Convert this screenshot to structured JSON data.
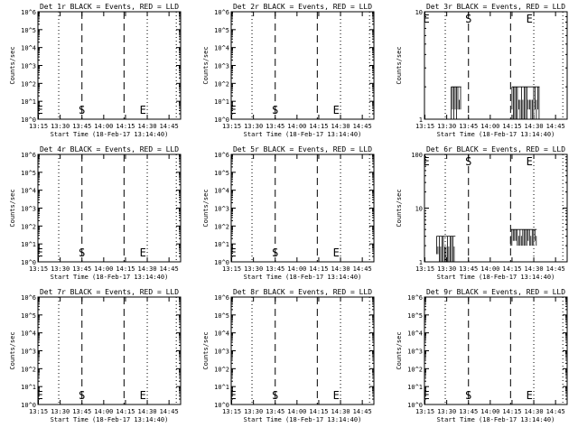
{
  "colors": {
    "background": "#ffffff",
    "axes": "#000000",
    "events": "#000000",
    "lld": "#ff0000"
  },
  "chart_data": [
    {
      "type": "line",
      "title": "Det 1r BLACK = Events, RED = LLD",
      "xlabel": "Start Time (18-Feb-17 13:14:40)",
      "ylabel": "Counts/sec",
      "xticks": [
        "13:15",
        "13:30",
        "13:45",
        "14:00",
        "14:15",
        "14:30",
        "14:45"
      ],
      "xlim": [
        "13:14:40",
        "14:53:00"
      ],
      "yscale": "log",
      "yticks": [
        "10^0",
        "10^1",
        "10^2",
        "10^3",
        "10^4",
        "10^5",
        "10^6"
      ],
      "ylim": [
        1,
        1000000
      ],
      "vlines_dotted": [
        "13:29",
        "14:30",
        "14:50"
      ],
      "vlines_dashed": [
        "13:45",
        "14:14"
      ],
      "markers": [
        "E",
        "S",
        "E"
      ],
      "marker_times": [
        "13:16",
        "13:45",
        "14:27"
      ],
      "series": []
    },
    {
      "type": "line",
      "title": "Det 2r BLACK = Events, RED = LLD",
      "xlabel": "Start Time (18-Feb-17 13:14:40)",
      "ylabel": "Counts/sec",
      "xticks": [
        "13:15",
        "13:30",
        "13:45",
        "14:00",
        "14:15",
        "14:30",
        "14:45"
      ],
      "xlim": [
        "13:14:40",
        "14:53:00"
      ],
      "yscale": "log",
      "yticks": [
        "10^0",
        "10^1",
        "10^2",
        "10^3",
        "10^4",
        "10^5",
        "10^6"
      ],
      "ylim": [
        1,
        1000000
      ],
      "vlines_dotted": [
        "13:29",
        "14:30",
        "14:50"
      ],
      "vlines_dashed": [
        "13:45",
        "14:14"
      ],
      "markers": [
        "E",
        "S",
        "E"
      ],
      "marker_times": [
        "13:16",
        "13:45",
        "14:27"
      ],
      "series": []
    },
    {
      "type": "line",
      "title": "Det 3r BLACK = Events, RED = LLD",
      "xlabel": "Start Time (18-Feb-17 13:14:40)",
      "ylabel": "Counts/sec",
      "xticks": [
        "13:15",
        "13:30",
        "13:45",
        "14:00",
        "14:15",
        "14:30",
        "14:45"
      ],
      "xlim": [
        "13:14:40",
        "14:53:00"
      ],
      "yscale": "log",
      "yticks": [
        "1",
        "10"
      ],
      "ylim": [
        1,
        10
      ],
      "vlines_dotted": [
        "13:29",
        "14:30",
        "14:50"
      ],
      "vlines_dashed": [
        "13:45",
        "14:14"
      ],
      "markers": [
        "E",
        "S",
        "E"
      ],
      "marker_times": [
        "13:16",
        "13:45",
        "14:27"
      ],
      "series": [
        {
          "x": [
            "13:33",
            "13:40"
          ],
          "low": 1,
          "high": 2,
          "kind": "band"
        },
        {
          "x": [
            "14:15",
            "14:34"
          ],
          "low": 1,
          "high": 2,
          "kind": "band"
        }
      ]
    },
    {
      "type": "line",
      "title": "Det 4r BLACK = Events, RED = LLD",
      "xlabel": "Start Time (18-Feb-17 13:14:40)",
      "ylabel": "Counts/sec",
      "xticks": [
        "13:15",
        "13:30",
        "13:45",
        "14:00",
        "14:15",
        "14:30",
        "14:45"
      ],
      "xlim": [
        "13:14:40",
        "14:53:00"
      ],
      "yscale": "log",
      "yticks": [
        "10^0",
        "10^1",
        "10^2",
        "10^3",
        "10^4",
        "10^5",
        "10^6"
      ],
      "ylim": [
        1,
        1000000
      ],
      "vlines_dotted": [
        "13:29",
        "14:30",
        "14:50"
      ],
      "vlines_dashed": [
        "13:45",
        "14:14"
      ],
      "markers": [
        "E",
        "S",
        "E"
      ],
      "marker_times": [
        "13:16",
        "13:45",
        "14:27"
      ],
      "series": []
    },
    {
      "type": "line",
      "title": "Det 5r BLACK = Events, RED = LLD",
      "xlabel": "Start Time (18-Feb-17 13:14:40)",
      "ylabel": "Counts/sec",
      "xticks": [
        "13:15",
        "13:30",
        "13:45",
        "14:00",
        "14:15",
        "14:30",
        "14:45"
      ],
      "xlim": [
        "13:14:40",
        "14:53:00"
      ],
      "yscale": "log",
      "yticks": [
        "10^0",
        "10^1",
        "10^2",
        "10^3",
        "10^4",
        "10^5",
        "10^6"
      ],
      "ylim": [
        1,
        1000000
      ],
      "vlines_dotted": [
        "13:29",
        "14:30",
        "14:50"
      ],
      "vlines_dashed": [
        "13:45",
        "14:14"
      ],
      "markers": [
        "E",
        "S",
        "E"
      ],
      "marker_times": [
        "13:16",
        "13:45",
        "14:27"
      ],
      "series": []
    },
    {
      "type": "line",
      "title": "Det 6r BLACK = Events, RED = LLD",
      "xlabel": "Start Time (18-Feb-17 13:14:40)",
      "ylabel": "Counts/sec",
      "xticks": [
        "13:15",
        "13:30",
        "13:45",
        "14:00",
        "14:15",
        "14:30",
        "14:45"
      ],
      "xlim": [
        "13:14:40",
        "14:53:00"
      ],
      "yscale": "log",
      "yticks": [
        "1",
        "10",
        "100"
      ],
      "ylim": [
        1,
        100
      ],
      "vlines_dotted": [
        "13:29",
        "14:30",
        "14:50"
      ],
      "vlines_dashed": [
        "13:45",
        "14:14"
      ],
      "markers": [
        "E",
        "S",
        "E"
      ],
      "marker_times": [
        "13:16",
        "13:45",
        "14:27"
      ],
      "series": [
        {
          "x": [
            "13:23",
            "13:36"
          ],
          "low": 1,
          "high": 3,
          "kind": "band"
        },
        {
          "x": [
            "14:14",
            "14:32"
          ],
          "low": 2,
          "high": 4,
          "kind": "band"
        }
      ]
    },
    {
      "type": "line",
      "title": "Det 7r BLACK = Events, RED = LLD",
      "xlabel": "Start Time (18-Feb-17 13:14:40)",
      "ylabel": "Counts/sec",
      "xticks": [
        "13:15",
        "13:30",
        "13:45",
        "14:00",
        "14:15",
        "14:30",
        "14:45"
      ],
      "xlim": [
        "13:14:40",
        "14:53:00"
      ],
      "yscale": "log",
      "yticks": [
        "10^0",
        "10^1",
        "10^2",
        "10^3",
        "10^4",
        "10^5",
        "10^6"
      ],
      "ylim": [
        1,
        1000000
      ],
      "vlines_dotted": [
        "13:29",
        "14:30",
        "14:50"
      ],
      "vlines_dashed": [
        "13:45",
        "14:14"
      ],
      "markers": [
        "E",
        "S",
        "E"
      ],
      "marker_times": [
        "13:16",
        "13:45",
        "14:27"
      ],
      "series": []
    },
    {
      "type": "line",
      "title": "Det 8r BLACK = Events, RED = LLD",
      "xlabel": "Start Time (18-Feb-17 13:14:40)",
      "ylabel": "Counts/sec",
      "xticks": [
        "13:15",
        "13:30",
        "13:45",
        "14:00",
        "14:15",
        "14:30",
        "14:45"
      ],
      "xlim": [
        "13:14:40",
        "14:53:00"
      ],
      "yscale": "log",
      "yticks": [
        "10^0",
        "10^1",
        "10^2",
        "10^3",
        "10^4",
        "10^5",
        "10^6"
      ],
      "ylim": [
        1,
        1000000
      ],
      "vlines_dotted": [
        "13:29",
        "14:30",
        "14:50"
      ],
      "vlines_dashed": [
        "13:45",
        "14:14"
      ],
      "markers": [
        "E",
        "S",
        "E"
      ],
      "marker_times": [
        "13:16",
        "13:45",
        "14:27"
      ],
      "series": []
    },
    {
      "type": "line",
      "title": "Det 9r BLACK = Events, RED = LLD",
      "xlabel": "Start Time (18-Feb-17 13:14:40)",
      "ylabel": "Counts/sec",
      "xticks": [
        "13:15",
        "13:30",
        "13:45",
        "14:00",
        "14:15",
        "14:30",
        "14:45"
      ],
      "xlim": [
        "13:14:40",
        "14:53:00"
      ],
      "yscale": "log",
      "yticks": [
        "10^0",
        "10^1",
        "10^2",
        "10^3",
        "10^4",
        "10^5",
        "10^6"
      ],
      "ylim": [
        1,
        1000000
      ],
      "vlines_dotted": [
        "13:29",
        "14:30",
        "14:50"
      ],
      "vlines_dashed": [
        "13:45",
        "14:14"
      ],
      "markers": [
        "E",
        "S",
        "E"
      ],
      "marker_times": [
        "13:16",
        "13:45",
        "14:27"
      ],
      "series": []
    }
  ]
}
